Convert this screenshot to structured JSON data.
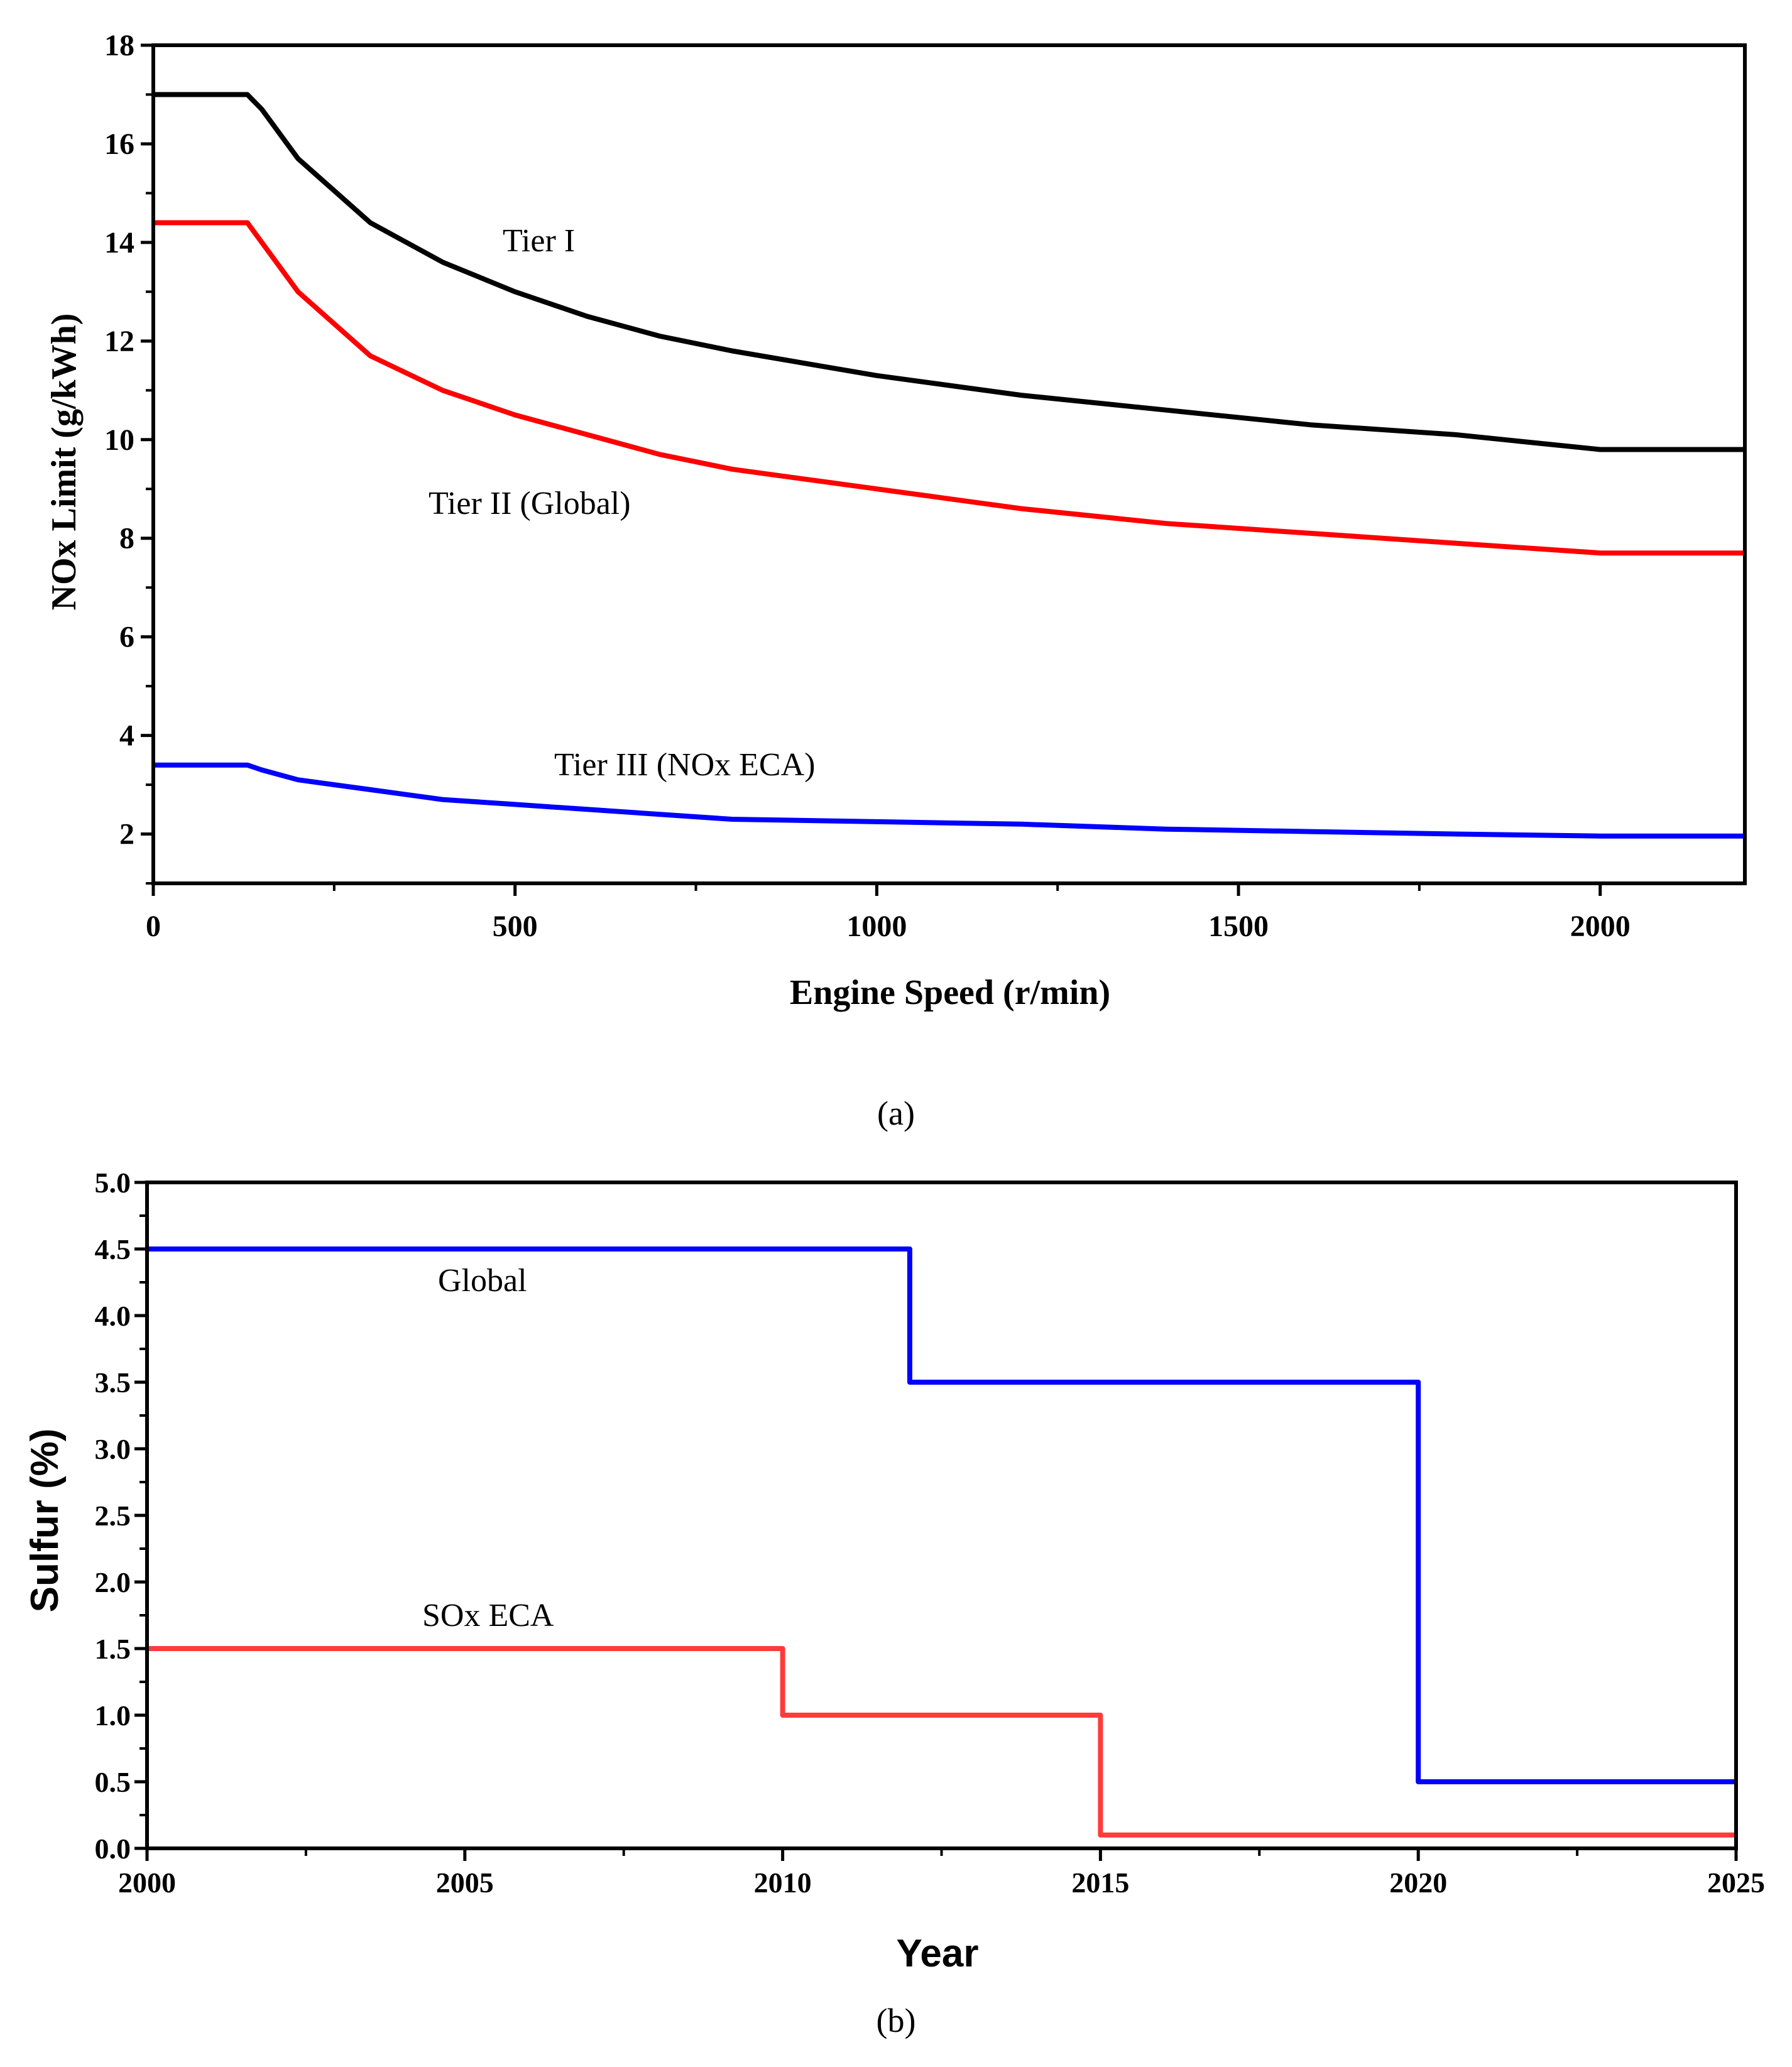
{
  "chart_data": [
    {
      "type": "line",
      "panel_label": "(a)",
      "xlabel": "Engine Speed (r/min)",
      "ylabel": "NOx Limit (g/kWh)",
      "xlim": [
        0,
        2200
      ],
      "ylim": [
        1,
        18
      ],
      "xticks": [
        0,
        500,
        1000,
        1500,
        2000
      ],
      "xtick_labels": [
        "0",
        "500",
        "1000",
        "1500",
        "2000"
      ],
      "yticks": [
        2,
        4,
        6,
        8,
        10,
        12,
        14,
        16,
        18
      ],
      "ytick_labels": [
        "2",
        "4",
        "6",
        "8",
        "10",
        "12",
        "14",
        "16",
        "18"
      ],
      "grid": false,
      "series": [
        {
          "name": "Tier I",
          "label": "Tier I",
          "color": "#000000",
          "x": [
            0,
            130,
            150,
            200,
            300,
            400,
            500,
            600,
            700,
            800,
            1000,
            1200,
            1400,
            1600,
            1800,
            2000,
            2200
          ],
          "y": [
            17.0,
            17.0,
            16.7,
            15.7,
            14.4,
            13.6,
            13.0,
            12.5,
            12.1,
            11.8,
            11.3,
            10.9,
            10.6,
            10.3,
            10.1,
            9.8,
            9.8
          ]
        },
        {
          "name": "Tier II (Global)",
          "label": "Tier II (Global)",
          "color": "#ff0000",
          "x": [
            0,
            130,
            150,
            200,
            300,
            400,
            500,
            600,
            700,
            800,
            1000,
            1200,
            1400,
            1600,
            1800,
            2000,
            2200
          ],
          "y": [
            14.4,
            14.4,
            14.0,
            13.0,
            11.7,
            11.0,
            10.5,
            10.1,
            9.7,
            9.4,
            9.0,
            8.6,
            8.3,
            8.1,
            7.9,
            7.7,
            7.7
          ]
        },
        {
          "name": "Tier III (NOx ECA)",
          "label": "Tier III (NOx ECA)",
          "color": "#0000ff",
          "x": [
            0,
            130,
            150,
            200,
            300,
            400,
            500,
            600,
            800,
            1000,
            1200,
            1400,
            1600,
            1800,
            2000,
            2200
          ],
          "y": [
            3.4,
            3.4,
            3.3,
            3.1,
            2.9,
            2.7,
            2.6,
            2.5,
            2.3,
            2.25,
            2.2,
            2.1,
            2.05,
            2.0,
            1.96,
            1.96
          ]
        }
      ]
    },
    {
      "type": "line",
      "panel_label": "(b)",
      "xlabel": "Year",
      "ylabel": "Sulfur (%)",
      "xlim": [
        2000,
        2025
      ],
      "ylim": [
        0,
        5
      ],
      "xticks": [
        2000,
        2005,
        2010,
        2015,
        2020,
        2025
      ],
      "xtick_labels": [
        "2000",
        "2005",
        "2010",
        "2015",
        "2020",
        "2025"
      ],
      "yticks": [
        0,
        0.5,
        1,
        1.5,
        2,
        2.5,
        3,
        3.5,
        4,
        4.5,
        5
      ],
      "ytick_labels": [
        "0.0",
        "0.5",
        "1.0",
        "1.5",
        "2.0",
        "2.5",
        "3.0",
        "3.5",
        "4.0",
        "4.5",
        "5.0"
      ],
      "grid": false,
      "series": [
        {
          "name": "Global",
          "label": "Global",
          "color": "#0000ff",
          "step": true,
          "x": [
            2000,
            2012,
            2012,
            2020,
            2020,
            2025
          ],
          "y": [
            4.5,
            4.5,
            3.5,
            3.5,
            0.5,
            0.5
          ]
        },
        {
          "name": "SOx ECA",
          "label": "SOx ECA",
          "color": "#ff3b3b",
          "step": true,
          "x": [
            2000,
            2010,
            2010,
            2015,
            2015,
            2025
          ],
          "y": [
            1.5,
            1.5,
            1.0,
            1.0,
            0.1,
            0.1
          ]
        }
      ]
    }
  ]
}
